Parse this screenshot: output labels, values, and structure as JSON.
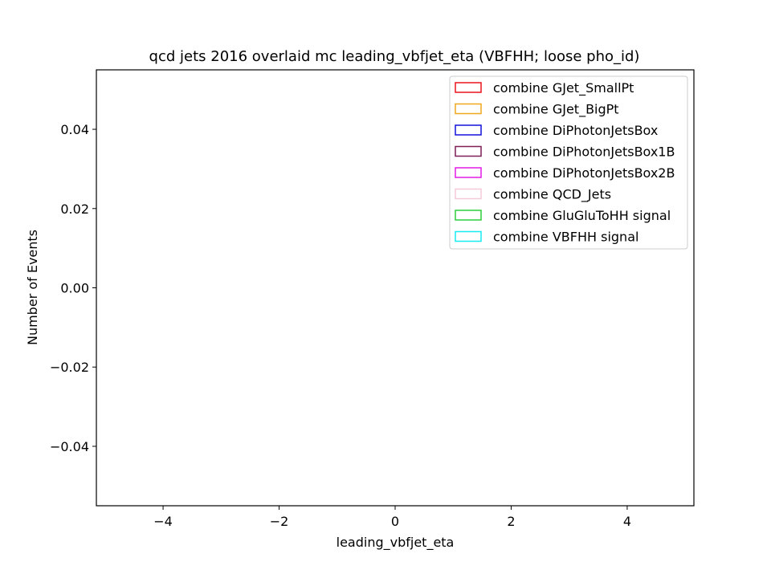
{
  "chart_data": {
    "type": "bar",
    "title": "qcd jets 2016 overlaid mc leading_vbfjet_eta (VBFHH; loose pho_id)",
    "xlabel": "leading_vbfjet_eta",
    "ylabel": "Number of Events",
    "xlim": [
      -5.15,
      5.15
    ],
    "ylim": [
      -0.055,
      0.055
    ],
    "x_ticks": [
      -4,
      -2,
      0,
      2,
      4
    ],
    "x_tick_labels": [
      "−4",
      "−2",
      "0",
      "2",
      "4"
    ],
    "y_ticks": [
      -0.04,
      -0.02,
      0.0,
      0.02,
      0.04
    ],
    "y_tick_labels": [
      "−0.04",
      "−0.02",
      "0.00",
      "0.02",
      "0.04"
    ],
    "grid": false,
    "legend_position": "top-right",
    "series": [
      {
        "name": "combine GJet_SmallPt",
        "color": "#e8141c",
        "values": []
      },
      {
        "name": "combine GJet_BigPt",
        "color": "#f0a81e",
        "values": []
      },
      {
        "name": "combine DiPhotonJetsBox",
        "color": "#1212d8",
        "values": []
      },
      {
        "name": "combine DiPhotonJetsBox1B",
        "color": "#7e1f57",
        "values": []
      },
      {
        "name": "combine DiPhotonJetsBox2B",
        "color": "#e21ce6",
        "values": []
      },
      {
        "name": "combine QCD_Jets",
        "color": "#f6c9d8",
        "values": []
      },
      {
        "name": "combine GluGluToHH signal",
        "color": "#2ecf3c",
        "values": []
      },
      {
        "name": "combine VBFHH signal",
        "color": "#18eaf2",
        "values": []
      }
    ]
  }
}
